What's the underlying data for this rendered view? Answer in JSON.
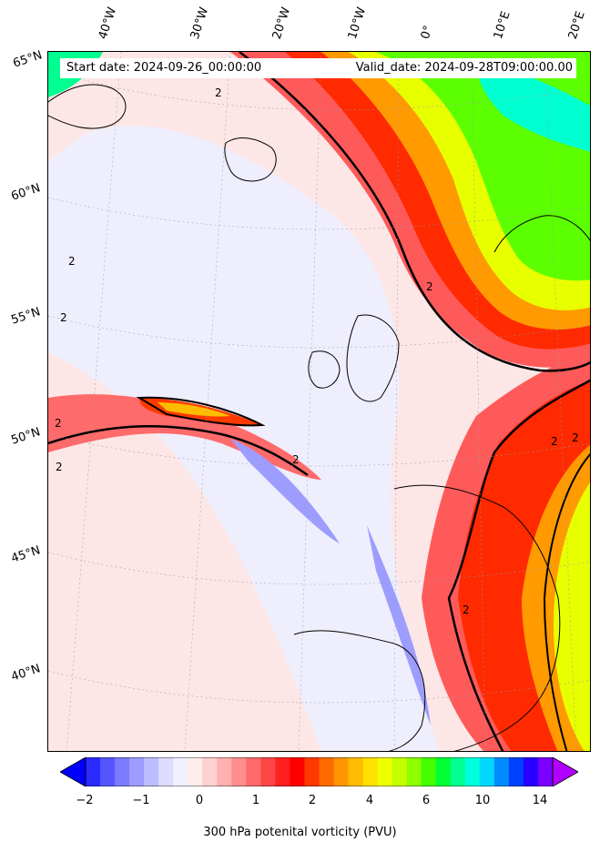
{
  "header": {
    "start_date": "Start date: 2024-09-26_00:00:00",
    "valid_date": "Valid_date: 2024-09-28T09:00:00.00"
  },
  "longitude_labels": [
    "40°W",
    "30°W",
    "20°W",
    "10°W",
    "0°",
    "10°E",
    "20°E"
  ],
  "latitude_labels": [
    "65°N",
    "60°N",
    "55°N",
    "50°N",
    "45°N",
    "40°N"
  ],
  "contour_label": "2",
  "colorbar": {
    "label": "300 hPa potenital vorticity (PVU)",
    "ticks": [
      "−2",
      "−1",
      "0",
      "1",
      "2",
      "4",
      "6",
      "10",
      "14"
    ],
    "colors": [
      "#0000ff",
      "#2a2aff",
      "#5555ff",
      "#7b7bff",
      "#9d9dff",
      "#bdbdff",
      "#dcdcff",
      "#f0f0ff",
      "#ffecec",
      "#ffd0d0",
      "#ffb0b0",
      "#ff8e8e",
      "#ff6a6a",
      "#ff4646",
      "#ff2020",
      "#ff0000",
      "#ff3a00",
      "#ff6a00",
      "#ff9600",
      "#ffbc00",
      "#ffe000",
      "#eeff00",
      "#c4ff00",
      "#8cff00",
      "#44ff00",
      "#00ff33",
      "#00ff90",
      "#00ffdd",
      "#00d8ff",
      "#008cff",
      "#0040ff",
      "#2800ff",
      "#7a00ff",
      "#b000ff"
    ]
  }
}
